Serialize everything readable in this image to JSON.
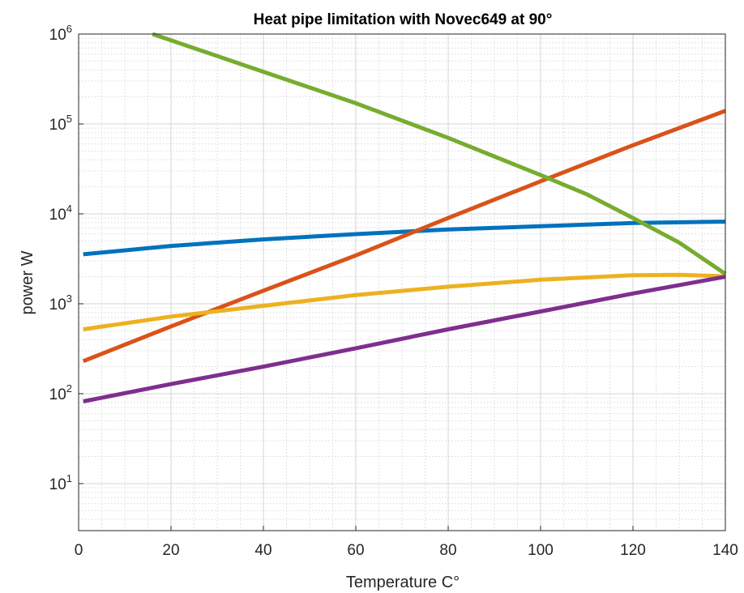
{
  "chart_data": {
    "type": "line",
    "title": "Heat pipe limitation with Novec649 at 90°",
    "xlabel": "Temperature C°",
    "ylabel": "power W",
    "xlim": [
      0,
      140
    ],
    "ylim": [
      3,
      1000000
    ],
    "yscale": "log",
    "grid": true,
    "minor_grid": true,
    "xticks": [
      0,
      20,
      40,
      60,
      80,
      100,
      120,
      140
    ],
    "xtick_labels": [
      "0",
      "20",
      "40",
      "60",
      "80",
      "100",
      "120",
      "140"
    ],
    "yticks": [
      10,
      100,
      1000,
      10000,
      100000,
      1000000
    ],
    "ytick_labels": [
      {
        "base": "10",
        "exp": "1"
      },
      {
        "base": "10",
        "exp": "2"
      },
      {
        "base": "10",
        "exp": "3"
      },
      {
        "base": "10",
        "exp": "4"
      },
      {
        "base": "10",
        "exp": "5"
      },
      {
        "base": "10",
        "exp": "6"
      }
    ],
    "series": [
      {
        "color": "#0072BD",
        "points": [
          [
            1,
            3550
          ],
          [
            20,
            4400
          ],
          [
            40,
            5200
          ],
          [
            60,
            5950
          ],
          [
            80,
            6700
          ],
          [
            100,
            7300
          ],
          [
            120,
            7900
          ],
          [
            140,
            8200
          ]
        ]
      },
      {
        "color": "#D95319",
        "points": [
          [
            1,
            230
          ],
          [
            20,
            560
          ],
          [
            40,
            1400
          ],
          [
            60,
            3450
          ],
          [
            80,
            9000
          ],
          [
            100,
            23000
          ],
          [
            120,
            58000
          ],
          [
            140,
            140000
          ]
        ]
      },
      {
        "color": "#EDB120",
        "points": [
          [
            1,
            520
          ],
          [
            20,
            720
          ],
          [
            40,
            950
          ],
          [
            60,
            1250
          ],
          [
            80,
            1550
          ],
          [
            100,
            1850
          ],
          [
            120,
            2080
          ],
          [
            130,
            2100
          ],
          [
            140,
            2020
          ]
        ]
      },
      {
        "color": "#7E2F8E",
        "points": [
          [
            1,
            82
          ],
          [
            20,
            128
          ],
          [
            40,
            200
          ],
          [
            60,
            320
          ],
          [
            80,
            520
          ],
          [
            100,
            820
          ],
          [
            120,
            1300
          ],
          [
            140,
            2000
          ]
        ]
      },
      {
        "color": "#77AC30",
        "points": [
          [
            16,
            1000000
          ],
          [
            40,
            380000
          ],
          [
            60,
            170000
          ],
          [
            80,
            70000
          ],
          [
            100,
            27000
          ],
          [
            110,
            16500
          ],
          [
            120,
            9000
          ],
          [
            130,
            4800
          ],
          [
            140,
            2150
          ]
        ]
      }
    ]
  }
}
